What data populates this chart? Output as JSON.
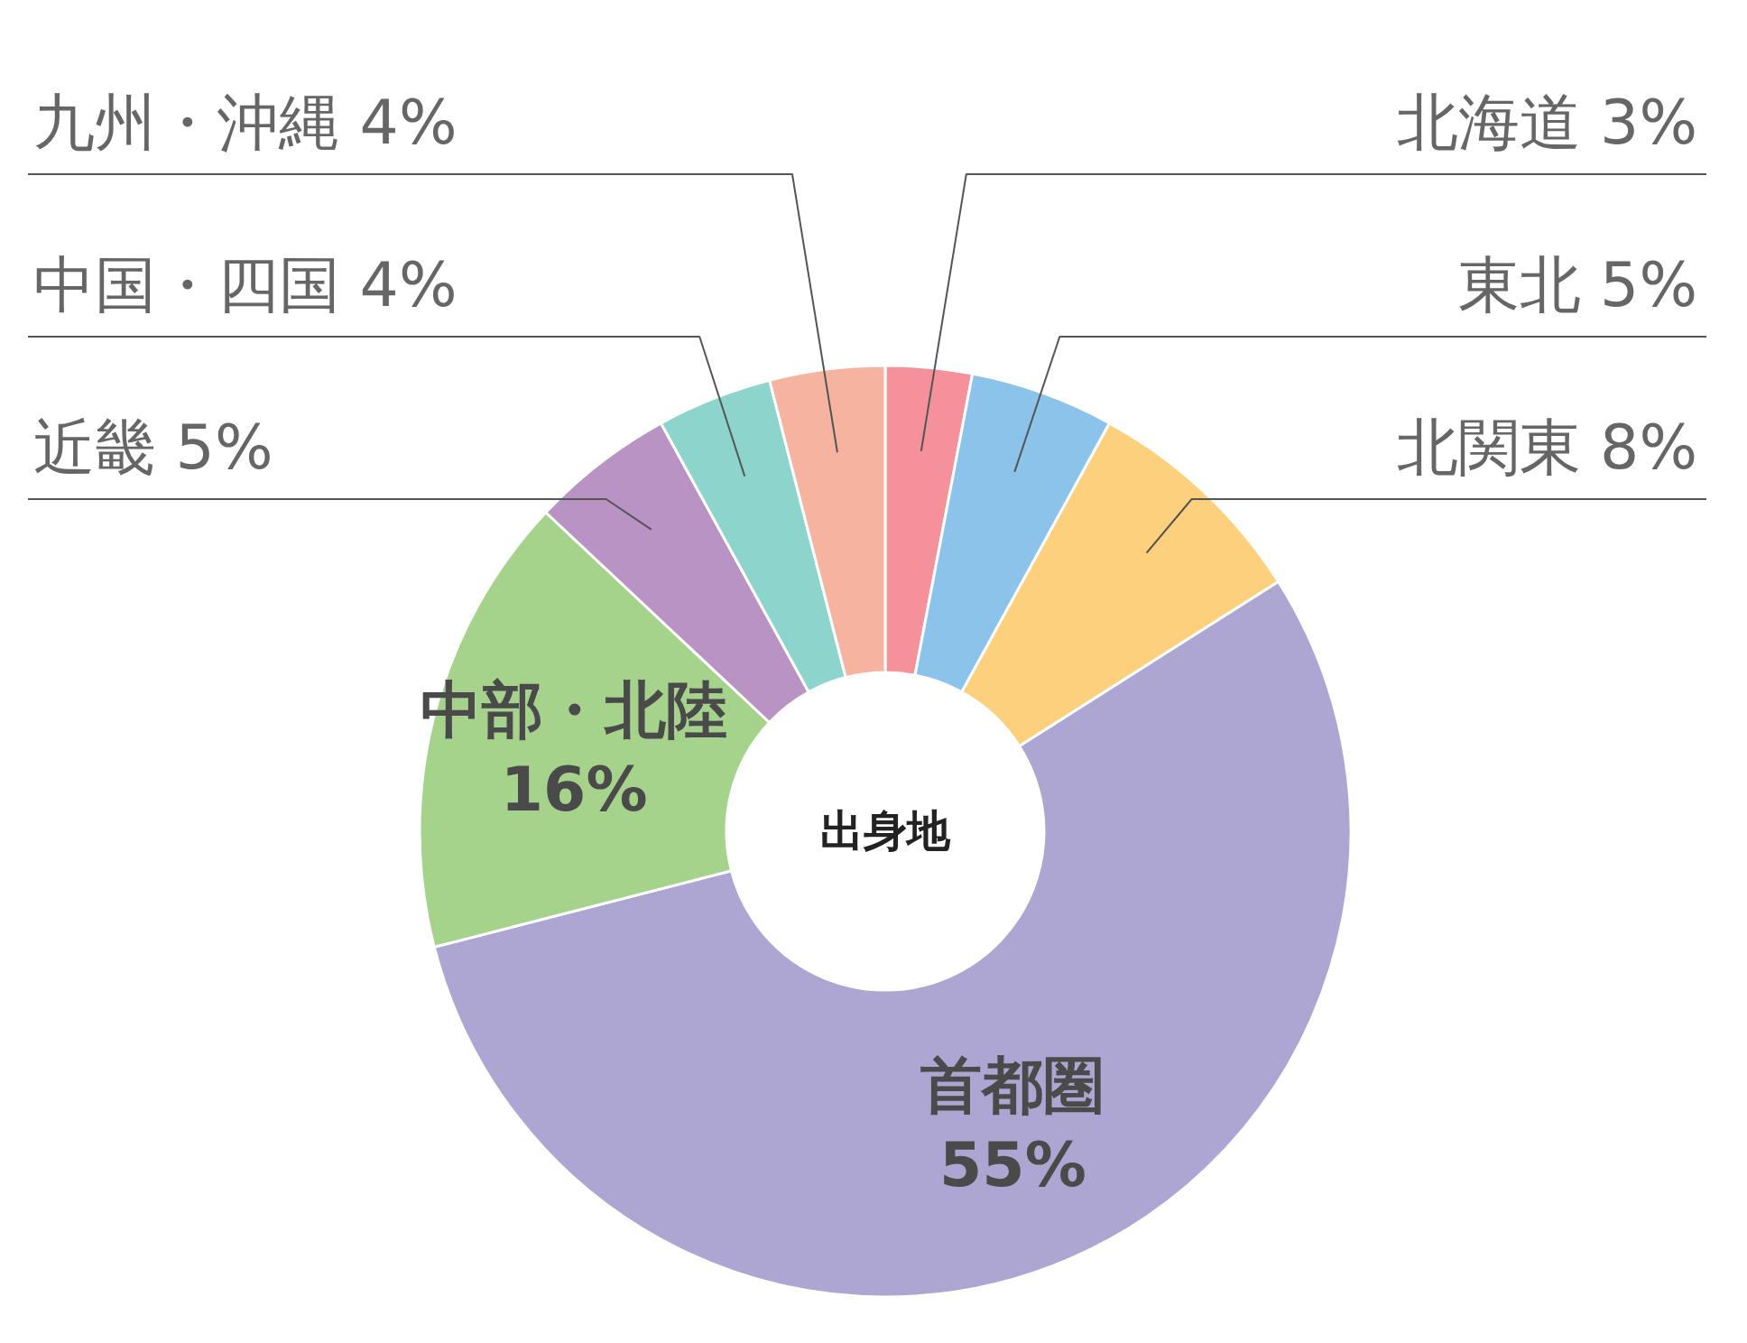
{
  "chart_data": {
    "type": "donut",
    "title": "出身地",
    "categories": [
      "北海道",
      "東北",
      "北関東",
      "首都圏",
      "中部・北陸",
      "近畿",
      "中国・四国",
      "九州・沖縄"
    ],
    "values": [
      3,
      5,
      8,
      55,
      16,
      5,
      4,
      4
    ],
    "colors": [
      "#f4919b",
      "#8cc3ea",
      "#fdd07e",
      "#ada6d2",
      "#a5d38c",
      "#b993c3",
      "#8dd4cc",
      "#f6b3a0"
    ],
    "value_labels": [
      "3%",
      "5%",
      "8%",
      "55%",
      "16%",
      "5%",
      "4%",
      "4%"
    ]
  }
}
